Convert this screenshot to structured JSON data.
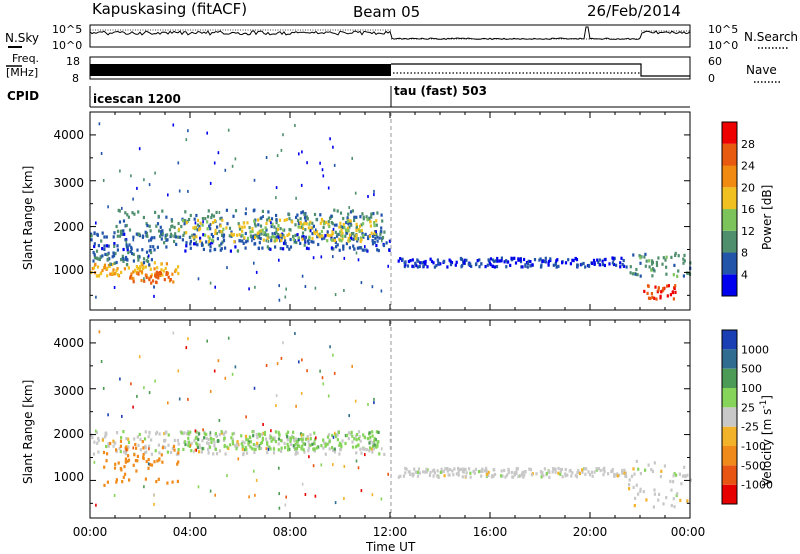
{
  "header": {
    "radar": "Kapuskasing (fitACF)",
    "beam": "Beam 05",
    "date": "26/Feb/2014"
  },
  "noise_panel": {
    "left_label": "N.Sky",
    "left_ticks": [
      "10^5",
      "10^0"
    ],
    "right_label": "N.Search",
    "right_ticks": [
      "10^5",
      "10^0"
    ]
  },
  "freq_panel": {
    "left_label_1": "Freq.",
    "left_label_2": "[MHz]",
    "left_ticks": [
      "18",
      "8"
    ],
    "right_label": "Nave",
    "right_ticks": [
      "60",
      "0"
    ]
  },
  "cpid_panel": {
    "label": "CPID",
    "modes": [
      "icescan 1200",
      "tau (fast) 503"
    ]
  },
  "colors": {
    "power_scale": [
      "#0000ee",
      "#2255aa",
      "#4f8f6e",
      "#7cc35c",
      "#f0c020",
      "#f08a10",
      "#e85a10",
      "#ee0000"
    ],
    "velocity_scale": [
      "#1a3fb4",
      "#2f6c8f",
      "#4b9a55",
      "#86d45a",
      "#c8c8c8",
      "#f2b22a",
      "#f08a1a",
      "#e85512",
      "#e60000"
    ],
    "ground_scatter": "#b8b8b8",
    "noise_line": "#000000"
  },
  "chart_data": [
    {
      "type": "heatmap",
      "name": "power",
      "xlabel": "",
      "ylabel": "Slant Range [km]",
      "xlim": [
        0,
        24
      ],
      "ylim": [
        180,
        4500
      ],
      "yticks": [
        "1000",
        "2000",
        "3000",
        "4000"
      ],
      "colorbar_label": "Power [dB]",
      "colorbar_ticks": [
        "4",
        "8",
        "12",
        "16",
        "20",
        "24",
        "28"
      ],
      "colorbar_range": [
        0,
        32
      ],
      "regions": [
        {
          "t0": 0.0,
          "t1": 12.0,
          "r0": 1500,
          "r1": 1900,
          "level": 6
        },
        {
          "t0": 1.0,
          "t1": 11.8,
          "r0": 1800,
          "r1": 2400,
          "level": 9
        },
        {
          "t0": 3.5,
          "t1": 11.5,
          "r0": 1700,
          "r1": 2200,
          "level": 17
        },
        {
          "t0": 0.0,
          "t1": 3.5,
          "r0": 950,
          "r1": 1250,
          "level": 19
        },
        {
          "t0": 1.5,
          "t1": 3.3,
          "r0": 800,
          "r1": 1050,
          "level": 25
        },
        {
          "t0": 0.0,
          "t1": 2.5,
          "r0": 1200,
          "r1": 1500,
          "level": 8
        },
        {
          "t0": 12.3,
          "t1": 21.5,
          "r0": 1150,
          "r1": 1350,
          "level": 4
        },
        {
          "t0": 21.5,
          "t1": 24.0,
          "r0": 950,
          "r1": 1450,
          "level": 10
        },
        {
          "t0": 22.0,
          "t1": 23.5,
          "r0": 450,
          "r1": 750,
          "level": 28
        }
      ]
    },
    {
      "type": "heatmap",
      "name": "velocity",
      "xlabel": "Time UT",
      "ylabel": "Slant Range [km]",
      "xlim": [
        0,
        24
      ],
      "ylim": [
        180,
        4500
      ],
      "xticks": [
        "00:00",
        "04:00",
        "08:00",
        "12:00",
        "16:00",
        "20:00",
        "00:00"
      ],
      "yticks": [
        "1000",
        "2000",
        "3000",
        "4000"
      ],
      "colorbar_label": "Velocity [m s^-1]",
      "colorbar_ticks": [
        "1000",
        "500",
        "100",
        "25",
        "-25",
        "-100",
        "-500",
        "-1000"
      ],
      "regions": [
        {
          "t0": 0.0,
          "t1": 12.0,
          "r0": 1600,
          "r1": 2100,
          "vel": 0
        },
        {
          "t0": 3.5,
          "t1": 11.5,
          "r0": 1700,
          "r1": 2100,
          "vel": 80
        },
        {
          "t0": 0.5,
          "t1": 3.5,
          "r0": 900,
          "r1": 1900,
          "vel": -300
        },
        {
          "t0": 12.3,
          "t1": 21.5,
          "r0": 1100,
          "r1": 1300,
          "vel": 0
        },
        {
          "t0": 21.5,
          "t1": 24.0,
          "r0": 450,
          "r1": 1450,
          "vel": 0
        }
      ]
    }
  ]
}
